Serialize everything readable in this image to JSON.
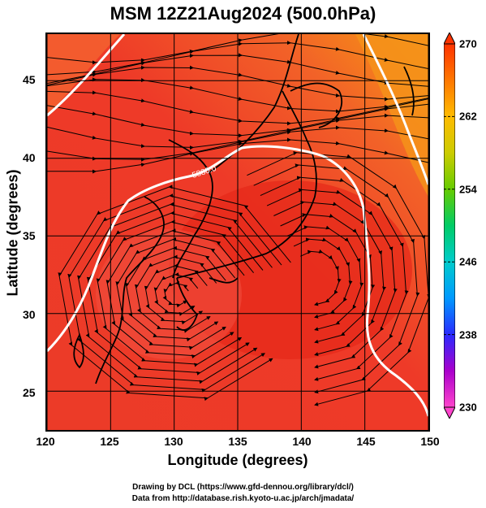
{
  "title": "MSM 12Z21Aug2024 (500.0hPa)",
  "x_axis": {
    "label": "Longitude (degrees)",
    "ticks": [
      "120",
      "125",
      "130",
      "135",
      "140",
      "145",
      "150"
    ]
  },
  "y_axis": {
    "label": "Latitude  (degrees)",
    "ticks": [
      "25",
      "30",
      "35",
      "40",
      "45"
    ]
  },
  "map": {
    "lon_range": [
      120,
      150
    ],
    "lat_range": [
      22.5,
      48
    ],
    "contour_label": "5880.0",
    "colors": {
      "warm": "#f04030",
      "deep": "#e82a1a",
      "edge": "#f58a10",
      "contour": "#ffffff"
    }
  },
  "colorbar": {
    "ticks": [
      "270",
      "262",
      "254",
      "246",
      "238",
      "230"
    ],
    "range": [
      230,
      270
    ],
    "colors": [
      "#ff44cc",
      "#aa00cc",
      "#2a2aff",
      "#0099ff",
      "#00cccc",
      "#00cc66",
      "#66cc00",
      "#cccc00",
      "#ffbb00",
      "#ff7700",
      "#ff3300"
    ]
  },
  "credits": {
    "line1": "Drawing by DCL (https://www.gfd-dennou.org/library/dcl/)",
    "line2": "Data from http://database.rish.kyoto-u.ac.jp/arch/jmadata/"
  }
}
